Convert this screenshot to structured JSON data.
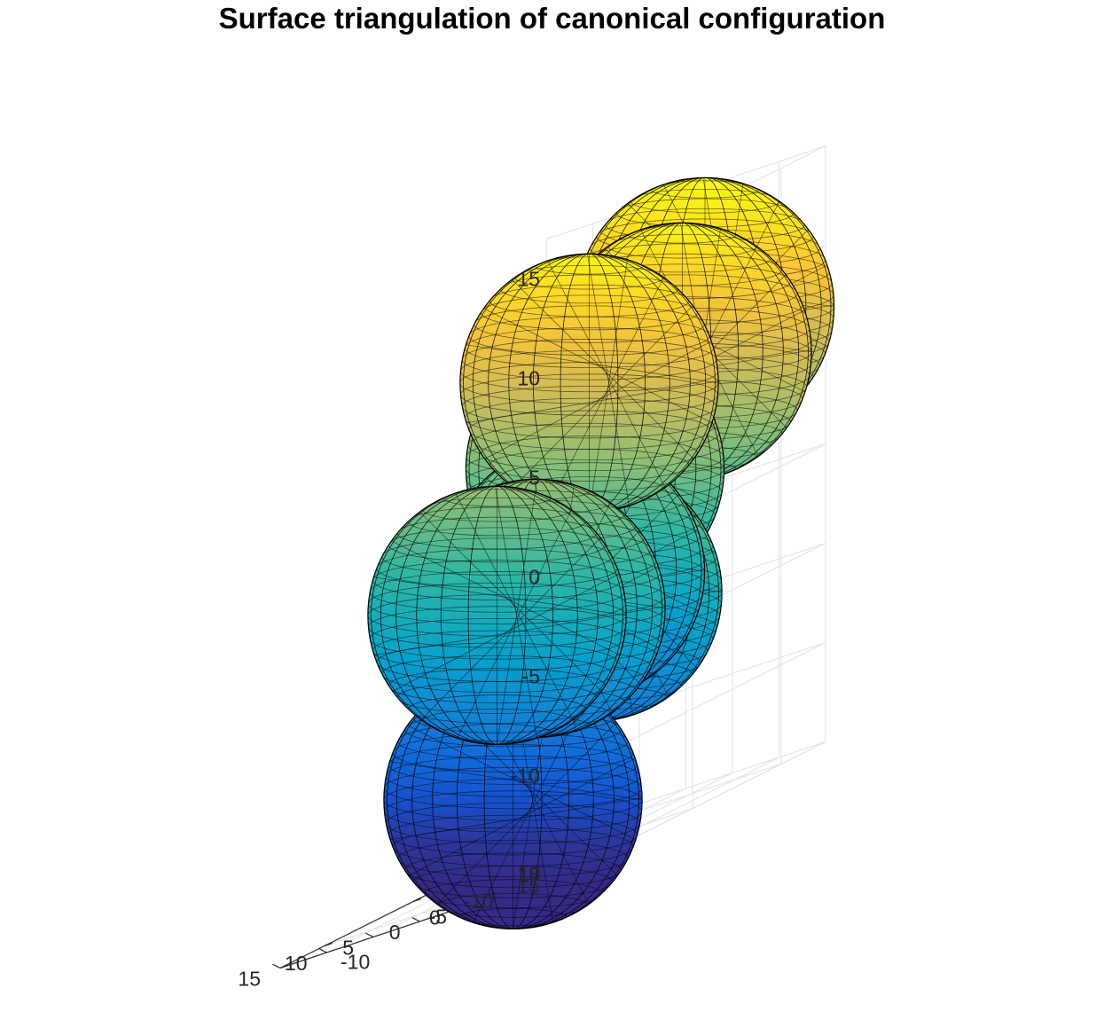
{
  "chart_data": {
    "type": "surface3d",
    "title": "Surface triangulation of canonical configuration",
    "xlabel": "",
    "ylabel": "",
    "zlabel": "",
    "xlim": [
      -15,
      15
    ],
    "ylim": [
      -15,
      15
    ],
    "zlim": [
      -15,
      15
    ],
    "x_ticks": [
      "-15",
      "-10",
      "-5",
      "0",
      "5",
      "10",
      "15"
    ],
    "y_ticks": [
      "-10",
      "0",
      "10"
    ],
    "z_ticks": [
      "15",
      "10",
      "5",
      "0",
      "-5",
      "-10",
      "-15"
    ],
    "grid": true,
    "colormap": "parula",
    "colormap_colors": [
      "#352a87",
      "#0f5cdd",
      "#1481d6",
      "#06a4ca",
      "#2eb7a4",
      "#87bf77",
      "#d1bb59",
      "#fec832",
      "#f9fb0e"
    ],
    "spheres": [
      {
        "id": 1,
        "center": [
          -3,
          14,
          9
        ],
        "radius": 6.5
      },
      {
        "id": 2,
        "center": [
          -12,
          2,
          8
        ],
        "radius": 6.5
      },
      {
        "id": 3,
        "center": [
          -2,
          2,
          8
        ],
        "radius": 6.5
      },
      {
        "id": 4,
        "center": [
          5,
          10,
          3
        ],
        "radius": 6.5
      },
      {
        "id": 5,
        "center": [
          -10,
          -6,
          -2
        ],
        "radius": 6.5
      },
      {
        "id": 6,
        "center": [
          -2,
          -4,
          -2
        ],
        "radius": 6.5
      },
      {
        "id": 7,
        "center": [
          9,
          12,
          -2
        ],
        "radius": 6.5
      },
      {
        "id": 8,
        "center": [
          6,
          0,
          -2
        ],
        "radius": 6.5
      },
      {
        "id": 9,
        "center": [
          10,
          6,
          -12
        ],
        "radius": 6.5
      }
    ]
  }
}
